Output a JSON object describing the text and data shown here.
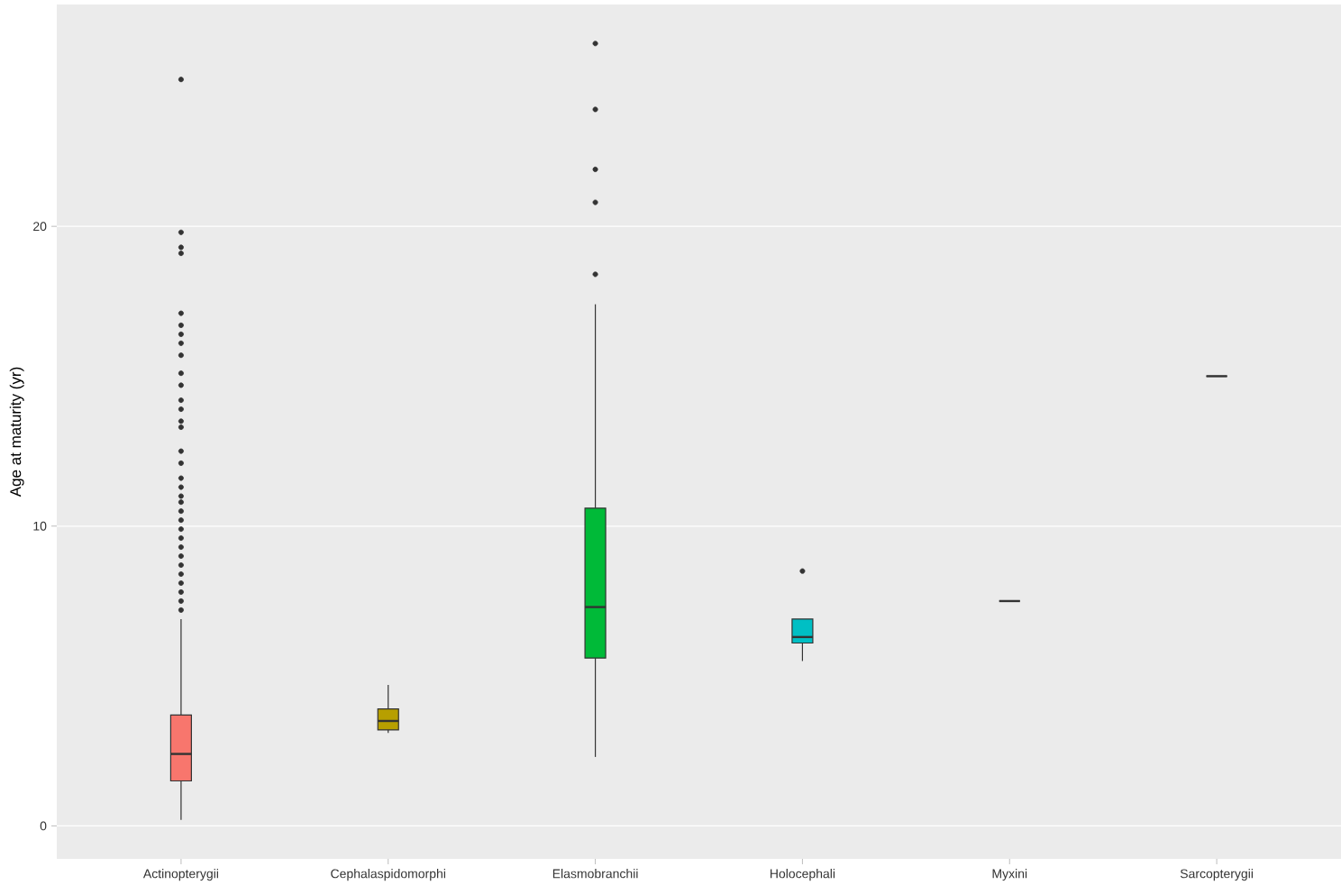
{
  "chart_data": {
    "type": "box",
    "ylabel": "Age at maturity (yr)",
    "categories": [
      "Actinopterygii",
      "Cephalaspidomorphi",
      "Elasmobranchii",
      "Holocephali",
      "Myxini",
      "Sarcopterygii"
    ],
    "colors": [
      "#f8766d",
      "#b79f00",
      "#00ba38",
      "#00bfc4",
      "#333333",
      "#333333"
    ],
    "boxes": [
      {
        "low": 0.2,
        "q1": 1.5,
        "median": 2.4,
        "q3": 3.7,
        "high": 6.9,
        "outliers": [
          7.2,
          7.5,
          7.8,
          8.1,
          8.4,
          8.7,
          9.0,
          9.3,
          9.6,
          9.9,
          10.2,
          10.5,
          10.8,
          11.0,
          11.3,
          11.6,
          12.1,
          12.5,
          13.3,
          13.5,
          13.9,
          14.2,
          14.7,
          15.1,
          15.7,
          16.1,
          16.4,
          16.7,
          17.1,
          19.1,
          19.3,
          19.8,
          24.9
        ]
      },
      {
        "low": 3.1,
        "q1": 3.2,
        "median": 3.5,
        "q3": 3.9,
        "high": 4.7
      },
      {
        "low": 2.3,
        "q1": 5.6,
        "median": 7.3,
        "q3": 10.6,
        "high": 17.4,
        "outliers": [
          18.4,
          20.8,
          21.9,
          23.9,
          26.1
        ]
      },
      {
        "low": 5.5,
        "q1": 6.1,
        "median": 6.3,
        "q3": 6.9,
        "high": 6.9,
        "outliers": [
          8.5
        ]
      },
      {
        "low": 7.5,
        "q1": 7.5,
        "median": 7.5,
        "q3": 7.5,
        "high": 7.5
      },
      {
        "low": 15.0,
        "q1": 15.0,
        "median": 15.0,
        "q3": 15.0,
        "high": 15.0
      }
    ],
    "ylim": [
      -1.1,
      27.4
    ],
    "yticks": [
      0,
      10,
      20
    ],
    "grid": "y"
  }
}
